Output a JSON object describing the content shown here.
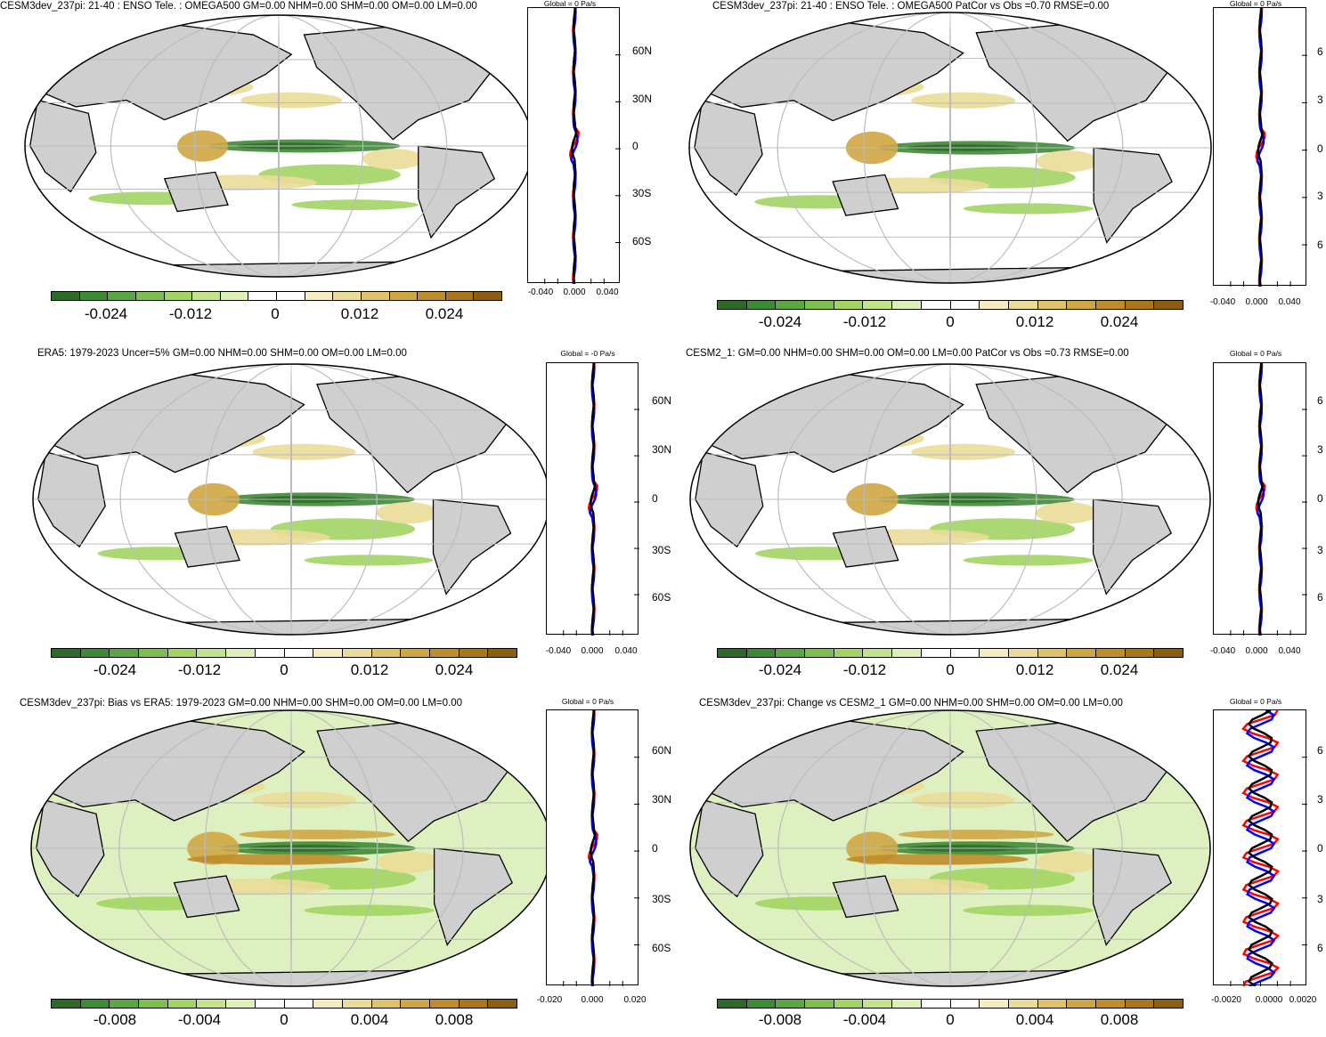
{
  "colors": {
    "scale": [
      "#2d6a2a",
      "#3d8a35",
      "#5aa642",
      "#7dbe4e",
      "#a2d463",
      "#c3e38a",
      "#ddf0b8",
      "#ffffff",
      "#ffffff",
      "#f5ecc0",
      "#eadb98",
      "#dfc26c",
      "#cfa644",
      "#be8c2a",
      "#a9761c",
      "#8c5e12"
    ],
    "land": "#cfcfcf",
    "obs_line": "#ff0000",
    "model_line": "#0000ff",
    "mean_line": "#000000"
  },
  "panels": [
    {
      "title": "CESM3dev_237pi: 21-40 : ENSO Tele. : OMEGA500 GM=0.00 NHM=0.00 SHM=0.00 OM=0.00 LM=0.00",
      "colorbar_labels": [
        "-0.024",
        "-0.012",
        "0",
        "0.012",
        "0.024"
      ],
      "zonal_title": "Global = 0 Pa/s",
      "lat_labels": [
        "60N",
        "30N",
        "0",
        "30S",
        "60S"
      ],
      "x_labels": [
        "-0.040",
        "0.000",
        "0.040"
      ]
    },
    {
      "title": "CESM3dev_237pi: 21-40 : ENSO Tele. : OMEGA500 PatCor vs Obs =0.70 RMSE=0.00",
      "colorbar_labels": [
        "-0.024",
        "-0.012",
        "0",
        "0.012",
        "0.024"
      ],
      "zonal_title": "Global = 0 Pa/s",
      "lat_labels": [
        "6",
        "3",
        "0",
        "3",
        "6"
      ],
      "x_labels": [
        "-0.040",
        "0.000",
        "0.040"
      ]
    },
    {
      "title": "ERA5: 1979-2023 Uncer=5% GM=0.00 NHM=0.00 SHM=0.00 OM=0.00 LM=0.00",
      "colorbar_labels": [
        "-0.024",
        "-0.012",
        "0",
        "0.012",
        "0.024"
      ],
      "zonal_title": "Global = -0 Pa/s",
      "lat_labels": [
        "60N",
        "30N",
        "0",
        "30S",
        "60S"
      ],
      "x_labels": [
        "-0.040",
        "0.000",
        "0.040"
      ]
    },
    {
      "title": "CESM2_1: GM=0.00 NHM=0.00 SHM=0.00 OM=0.00 LM=0.00 PatCor vs Obs =0.73 RMSE=0.00",
      "colorbar_labels": [
        "-0.024",
        "-0.012",
        "0",
        "0.012",
        "0.024"
      ],
      "zonal_title": "Global = 0 Pa/s",
      "lat_labels": [
        "6",
        "3",
        "0",
        "3",
        "6"
      ],
      "x_labels": [
        "-0.040",
        "0.000",
        "0.040"
      ]
    },
    {
      "title": "CESM3dev_237pi: Bias vs ERA5: 1979-2023 GM=0.00 NHM=0.00 SHM=0.00 OM=0.00 LM=0.00",
      "colorbar_labels": [
        "-0.008",
        "-0.004",
        "0",
        "0.004",
        "0.008"
      ],
      "zonal_title": "Global = 0 Pa/s",
      "lat_labels": [
        "60N",
        "30N",
        "0",
        "30S",
        "60S"
      ],
      "x_labels": [
        "-0.020",
        "0.000",
        "0.020"
      ]
    },
    {
      "title": "CESM3dev_237pi: Change vs CESM2_1 GM=0.00 NHM=0.00 SHM=0.00 OM=0.00 LM=0.00",
      "colorbar_labels": [
        "-0.008",
        "-0.004",
        "0",
        "0.004",
        "0.008"
      ],
      "zonal_title": "Global = 0 Pa/s",
      "lat_labels": [
        "6",
        "3",
        "0",
        "3",
        "6"
      ],
      "x_labels": [
        "-0.0020",
        "0.0000",
        "0.0020"
      ]
    }
  ]
}
